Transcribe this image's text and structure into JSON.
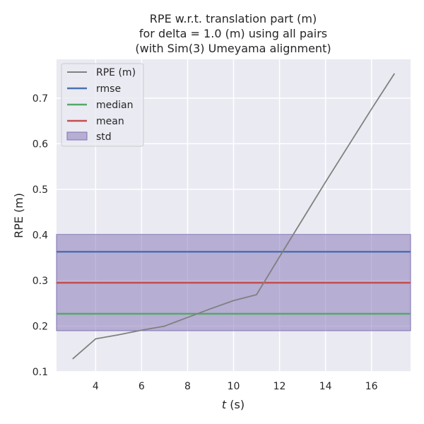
{
  "chart_data": {
    "type": "line",
    "title_lines": [
      "RPE w.r.t. translation part (m)",
      "for delta = 1.0 (m) using all pairs",
      "(with Sim(3) Umeyama alignment)"
    ],
    "xlabel_italic": "t",
    "xlabel_rest": " (s)",
    "ylabel": "RPE (m)",
    "xlim": [
      2.3,
      17.7
    ],
    "ylim": [
      0.1,
      0.785
    ],
    "x_ticks": [
      4,
      6,
      8,
      10,
      12,
      14,
      16
    ],
    "y_ticks": [
      0.1,
      0.2,
      0.3,
      0.4,
      0.5,
      0.6,
      0.7
    ],
    "grid": true,
    "legend_position": "upper-left",
    "series": [
      {
        "name": "RPE (m)",
        "color": "#808080",
        "x": [
          3,
          4,
          5,
          6,
          7,
          8,
          9,
          10,
          11,
          12,
          13,
          14,
          15,
          16,
          17
        ],
        "y": [
          0.128,
          0.172,
          0.181,
          0.191,
          0.2,
          0.219,
          0.238,
          0.256,
          0.269,
          0.352,
          0.434,
          0.516,
          0.596,
          0.676,
          0.754
        ]
      }
    ],
    "stats": {
      "rmse": {
        "name": "rmse",
        "value": 0.363,
        "color": "#4c72b0"
      },
      "median": {
        "name": "median",
        "value": 0.227,
        "color": "#55a868"
      },
      "mean": {
        "name": "mean",
        "value": 0.295,
        "color": "#c44e52"
      },
      "std": {
        "name": "std",
        "low": 0.19,
        "high": 0.401,
        "color": "#8172b3"
      }
    }
  }
}
